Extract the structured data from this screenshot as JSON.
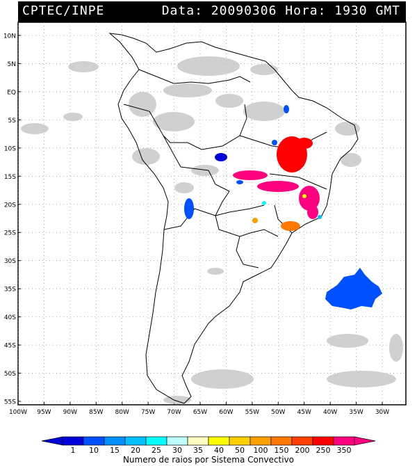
{
  "header": {
    "source": "CPTEC/INPE",
    "datetime": "Data: 20090306 Hora: 1930 GMT"
  },
  "map": {
    "lat_labels": [
      "10N",
      "5N",
      "EQ",
      "5S",
      "10S",
      "15S",
      "20S",
      "25S",
      "30S",
      "35S",
      "40S",
      "45S",
      "50S",
      "55S"
    ],
    "lon_labels": [
      "100W",
      "95W",
      "90W",
      "85W",
      "80W",
      "75W",
      "70W",
      "65W",
      "60W",
      "55W",
      "50W",
      "45W",
      "40W",
      "35W",
      "30W"
    ],
    "lat_range": [
      12,
      -56
    ],
    "lon_range": [
      -100,
      -28
    ],
    "grid": true
  },
  "legend": {
    "title": "Numero de raios por Sistema Convectivo",
    "ticks": [
      "1",
      "10",
      "15",
      "20",
      "25",
      "30",
      "35",
      "40",
      "50",
      "100",
      "150",
      "200",
      "250",
      "350"
    ],
    "colors": [
      "#0000d8",
      "#0050ff",
      "#0090ff",
      "#00c0ff",
      "#00ffff",
      "#c0ffff",
      "#ffffc0",
      "#ffff00",
      "#ffd000",
      "#ffa000",
      "#ff7800",
      "#ff4000",
      "#ff0000",
      "#ff0080"
    ]
  }
}
